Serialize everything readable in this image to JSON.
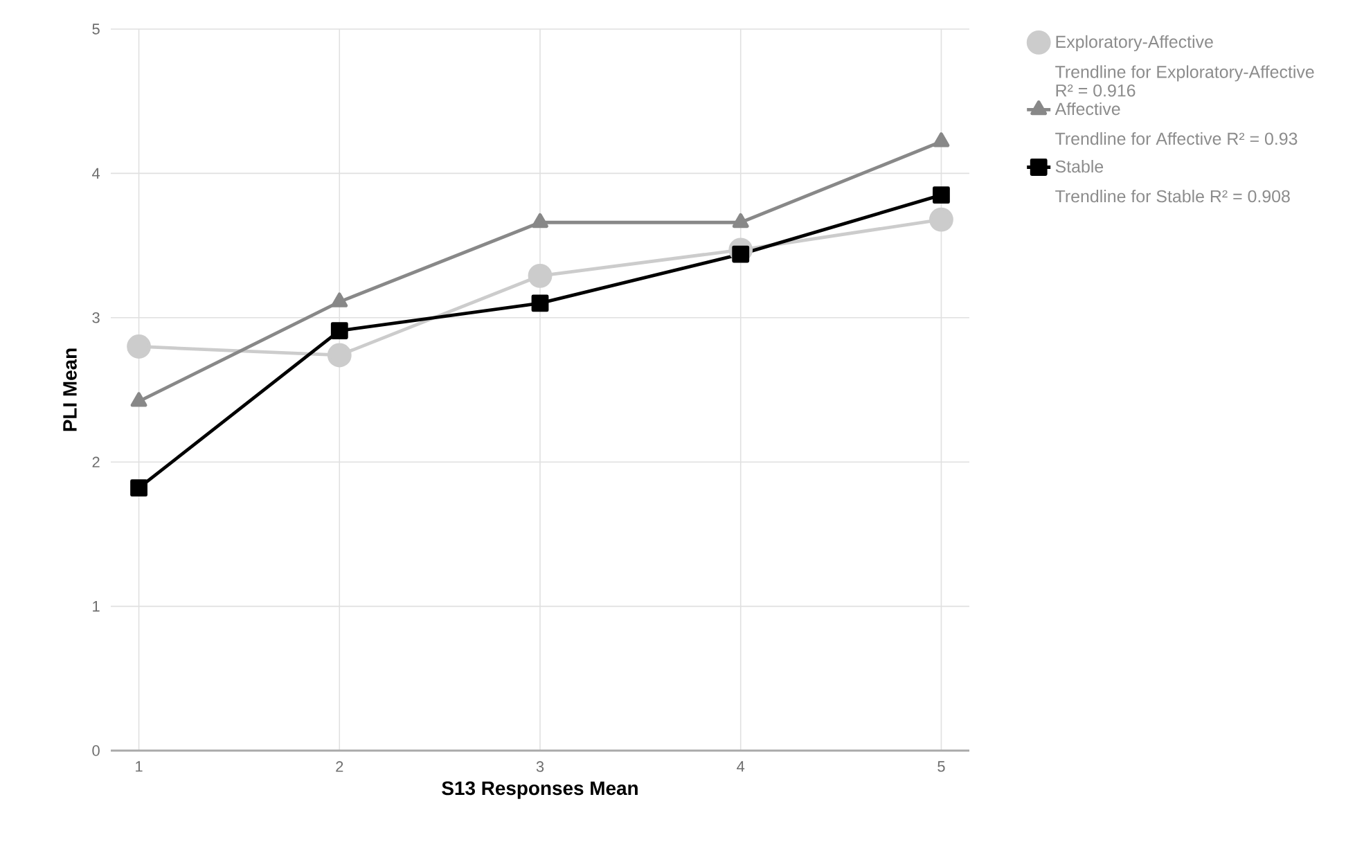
{
  "chart_data": {
    "type": "line",
    "xlabel": "S13 Responses Mean",
    "ylabel": "PLI Mean",
    "x": [
      1,
      2,
      3,
      4,
      5
    ],
    "series": [
      {
        "name": "Exploratory-Affective",
        "color": "#cccccc",
        "marker": "circle",
        "values": [
          2.8,
          2.74,
          3.29,
          3.47,
          3.68
        ]
      },
      {
        "name": "Affective",
        "color": "#888888",
        "marker": "triangle",
        "values": [
          2.42,
          3.11,
          3.66,
          3.66,
          4.22
        ]
      },
      {
        "name": "Stable",
        "color": "#000000",
        "marker": "square",
        "values": [
          1.82,
          2.91,
          3.1,
          3.44,
          3.85
        ]
      }
    ],
    "annotations": [
      "Trendline for Exploratory-Affective R² = 0.916",
      "Trendline for Affective R² = 0.93",
      "Trendline for Stable R² = 0.908"
    ],
    "xlim": [
      0.86,
      5.14
    ],
    "xticks": [
      1,
      2,
      3,
      4,
      5
    ],
    "ylim": [
      0,
      5
    ],
    "yticks": [
      0,
      1,
      2,
      3,
      4,
      5
    ],
    "grid": true,
    "legend": "right",
    "line_style": "solid"
  }
}
